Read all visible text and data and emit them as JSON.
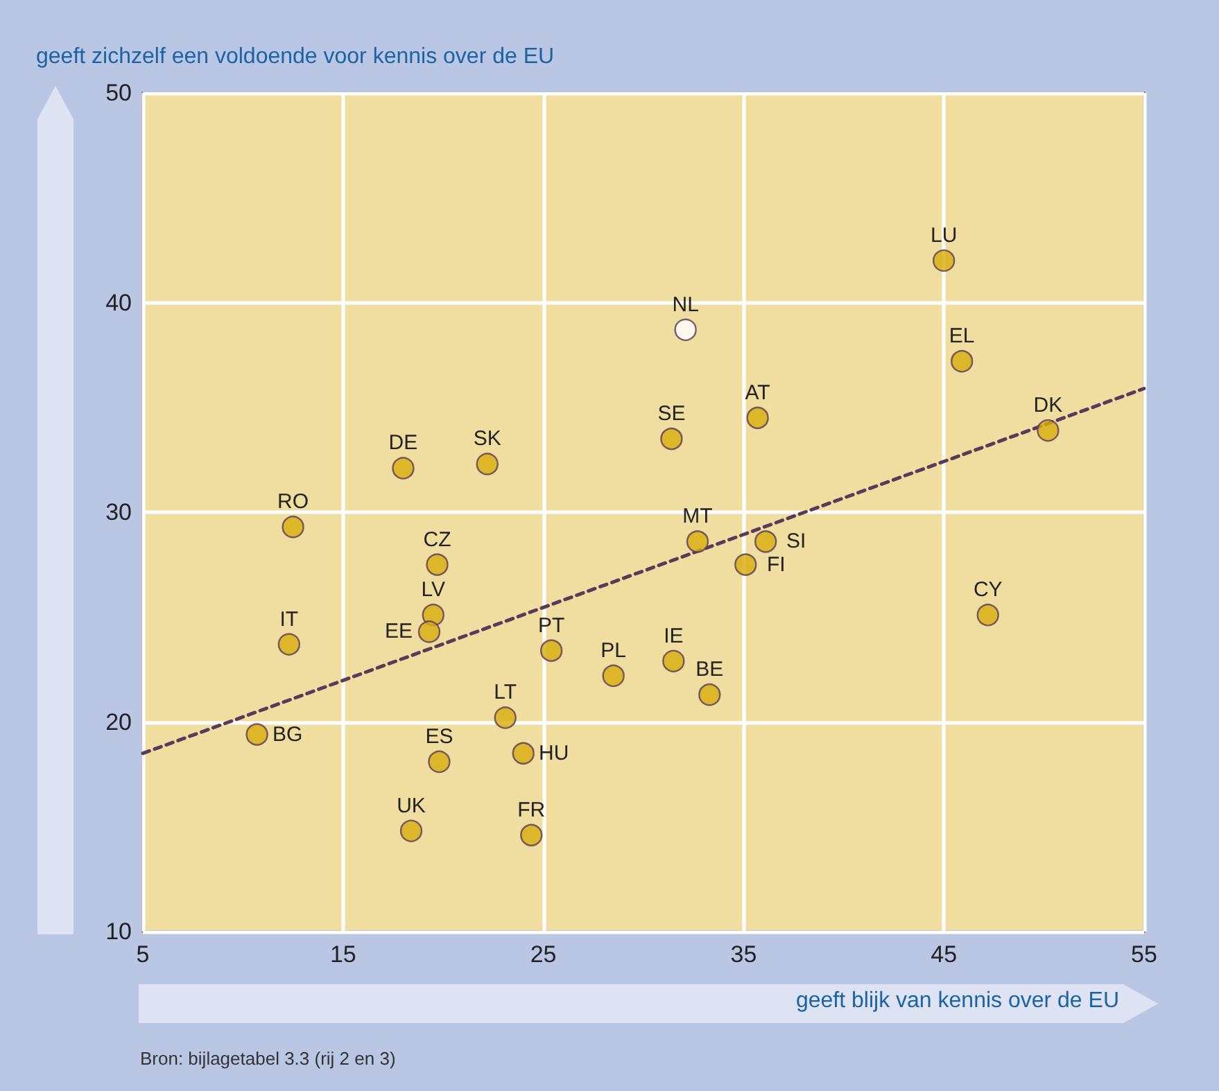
{
  "chart_data": {
    "type": "scatter",
    "xlabel": "geeft blijk van kennis over de EU",
    "ylabel": "geeft zichzelf een voldoende voor kennis over de EU",
    "annotations": [
      "Bron: bijlagetabel 3.3 (rij 2 en 3)",
      {
        "text": "BG",
        "x": 10.7,
        "y": 19.4
      },
      {
        "text": "IT",
        "x": 12.3,
        "y": 23.7
      },
      {
        "text": "RO",
        "x": 12.5,
        "y": 29.3
      },
      {
        "text": "DE",
        "x": 18.0,
        "y": 32.1
      },
      {
        "text": "SK",
        "x": 22.2,
        "y": 32.3
      },
      {
        "text": "CZ",
        "x": 19.7,
        "y": 27.5
      },
      {
        "text": "LV",
        "x": 19.5,
        "y": 25.1
      },
      {
        "text": "EE",
        "x": 19.3,
        "y": 24.3
      },
      {
        "text": "UK",
        "x": 18.4,
        "y": 14.8
      },
      {
        "text": "ES",
        "x": 19.8,
        "y": 18.1
      },
      {
        "text": "LT",
        "x": 23.1,
        "y": 20.2
      },
      {
        "text": "HU",
        "x": 24.0,
        "y": 18.5
      },
      {
        "text": "FR",
        "x": 24.4,
        "y": 14.6
      },
      {
        "text": "PT",
        "x": 25.4,
        "y": 23.4
      },
      {
        "text": "PL",
        "x": 28.5,
        "y": 22.2
      },
      {
        "text": "IE",
        "x": 31.5,
        "y": 22.9
      },
      {
        "text": "BE",
        "x": 33.3,
        "y": 21.3
      },
      {
        "text": "MT",
        "x": 32.7,
        "y": 28.6
      },
      {
        "text": "SI",
        "x": 36.1,
        "y": 28.6
      },
      {
        "text": "FI",
        "x": 35.1,
        "y": 27.5
      },
      {
        "text": "SE",
        "x": 31.4,
        "y": 33.5
      },
      {
        "text": "AT",
        "x": 35.7,
        "y": 34.5
      },
      {
        "text": "NL",
        "x": 32.1,
        "y": 38.7
      },
      {
        "text": "LU",
        "x": 45.0,
        "y": 42.0
      },
      {
        "text": "EL",
        "x": 45.9,
        "y": 37.2
      },
      {
        "text": "DK",
        "x": 50.2,
        "y": 33.9
      },
      {
        "text": "CY",
        "x": 47.2,
        "y": 25.1
      }
    ],
    "series": [
      {
        "x": [
          10.7,
          12.3,
          12.5,
          18.0,
          22.2,
          19.7,
          19.5,
          19.3,
          18.4,
          19.8,
          23.1,
          24.0,
          24.4,
          25.4,
          28.5,
          31.5,
          33.3,
          32.7,
          36.1,
          35.1,
          31.4,
          35.7,
          32.1,
          45.0,
          45.9,
          50.2,
          47.2
        ],
        "values": [
          19.4,
          23.7,
          29.3,
          32.1,
          32.3,
          27.5,
          25.1,
          24.3,
          14.8,
          18.1,
          20.2,
          18.5,
          14.6,
          23.4,
          22.2,
          22.9,
          21.3,
          28.6,
          28.6,
          27.5,
          33.5,
          34.5,
          38.7,
          42.0,
          37.2,
          33.9,
          25.1
        ],
        "colors": [
          "#d8ad0c",
          "#d8ad0c",
          "#d8ad0c",
          "#d8ad0c",
          "#d8ad0c",
          "#d8ad0c",
          "#d8ad0c",
          "#d8ad0c",
          "#d8ad0c",
          "#d8ad0c",
          "#d8ad0c",
          "#d8ad0c",
          "#d8ad0c",
          "#d8ad0c",
          "#d8ad0c",
          "#d8ad0c",
          "#d8ad0c",
          "#d8ad0c",
          "#d8ad0c",
          "#d8ad0c",
          "#d8ad0c",
          "#d8ad0c",
          "#ffffff",
          "#d8ad0c",
          "#d8ad0c",
          "#d8ad0c",
          "#d8ad0c"
        ],
        "marker": "circle"
      },
      {
        "type": "line",
        "x": [
          5,
          55
        ],
        "values": [
          18.5,
          35.9
        ],
        "color": "#5a3a5a",
        "line_style": "dashed",
        "marker": "none"
      }
    ],
    "xlim": [
      5,
      55
    ],
    "xticks": [
      5,
      15,
      25,
      35,
      45,
      55
    ],
    "ylim": [
      10,
      50
    ],
    "yticks": [
      10,
      20,
      30,
      40,
      50
    ],
    "grid": true
  }
}
